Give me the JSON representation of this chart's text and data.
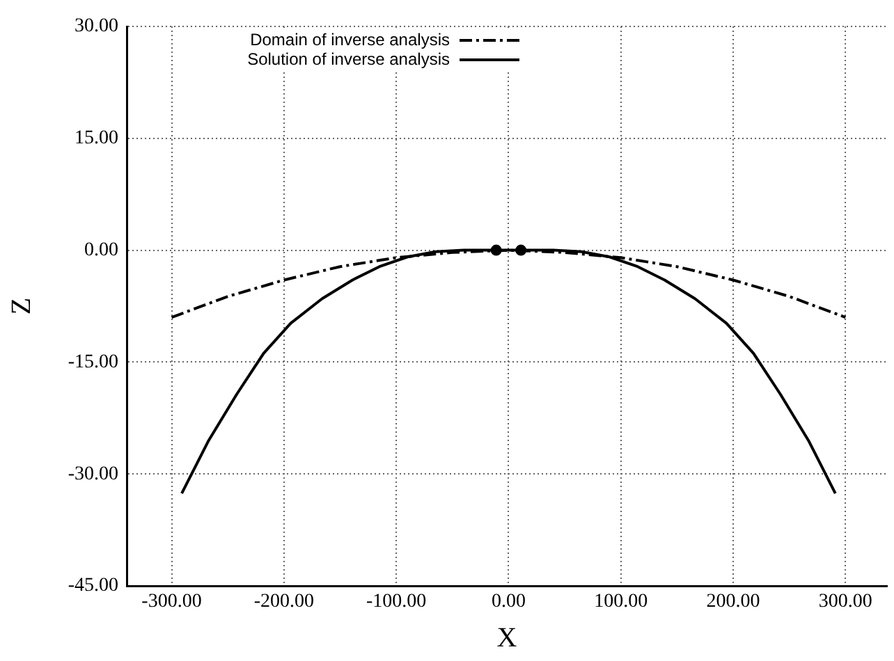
{
  "chart_data": {
    "type": "line",
    "xlabel": "X",
    "ylabel": "Z",
    "xlim": [
      -340,
      337
    ],
    "xticks": [
      {
        "value": -300,
        "label": "-300.00"
      },
      {
        "value": -200,
        "label": "-200.00"
      },
      {
        "value": -100,
        "label": "-100.00"
      },
      {
        "value": 0,
        "label": "0.00"
      },
      {
        "value": 100,
        "label": "100.00"
      },
      {
        "value": 200,
        "label": "200.00"
      },
      {
        "value": 300,
        "label": "300.00"
      }
    ],
    "ylim": [
      -45,
      30
    ],
    "yticks": [
      {
        "value": -45,
        "label": "-45.00"
      },
      {
        "value": -30,
        "label": "-30.00"
      },
      {
        "value": -15,
        "label": "-15.00"
      },
      {
        "value": 0,
        "label": "0.00"
      },
      {
        "value": 15,
        "label": "15.00"
      },
      {
        "value": 30,
        "label": "30.00"
      }
    ],
    "grid": true,
    "legend": "top left",
    "marker": "none",
    "series": [
      {
        "name": "Domain of inverse analysis",
        "color": "#000000",
        "line_style": "dashed",
        "x": [
          -300,
          -250,
          -200,
          -150,
          -100,
          -50,
          0,
          50,
          100,
          150,
          200,
          250,
          300
        ],
        "values": [
          -9,
          -6.2,
          -4,
          -2.2,
          -1,
          -0.3,
          0,
          -0.3,
          -1,
          -2.2,
          -4,
          -6.2,
          -9
        ]
      },
      {
        "name": "Solution of inverse analysis",
        "color": "#000000",
        "line_style": "solid",
        "x": [
          -291,
          -267,
          -242,
          -218,
          -194,
          -166,
          -139,
          -115,
          -90,
          -65,
          -40,
          0,
          40,
          65,
          90,
          115,
          139,
          166,
          194,
          218,
          242,
          267,
          291
        ],
        "values": [
          -32.6,
          -25.5,
          -19.3,
          -13.8,
          -9.8,
          -6.5,
          -4,
          -2.2,
          -0.9,
          -0.2,
          0,
          0,
          0,
          -0.2,
          -0.9,
          -2.2,
          -4,
          -6.5,
          -9.8,
          -13.8,
          -19.3,
          -25.5,
          -32.6
        ]
      },
      {
        "type": "scatter",
        "color": "#000000",
        "marker": "circle",
        "x": [
          -11,
          11
        ],
        "values": [
          0,
          0
        ]
      }
    ]
  }
}
